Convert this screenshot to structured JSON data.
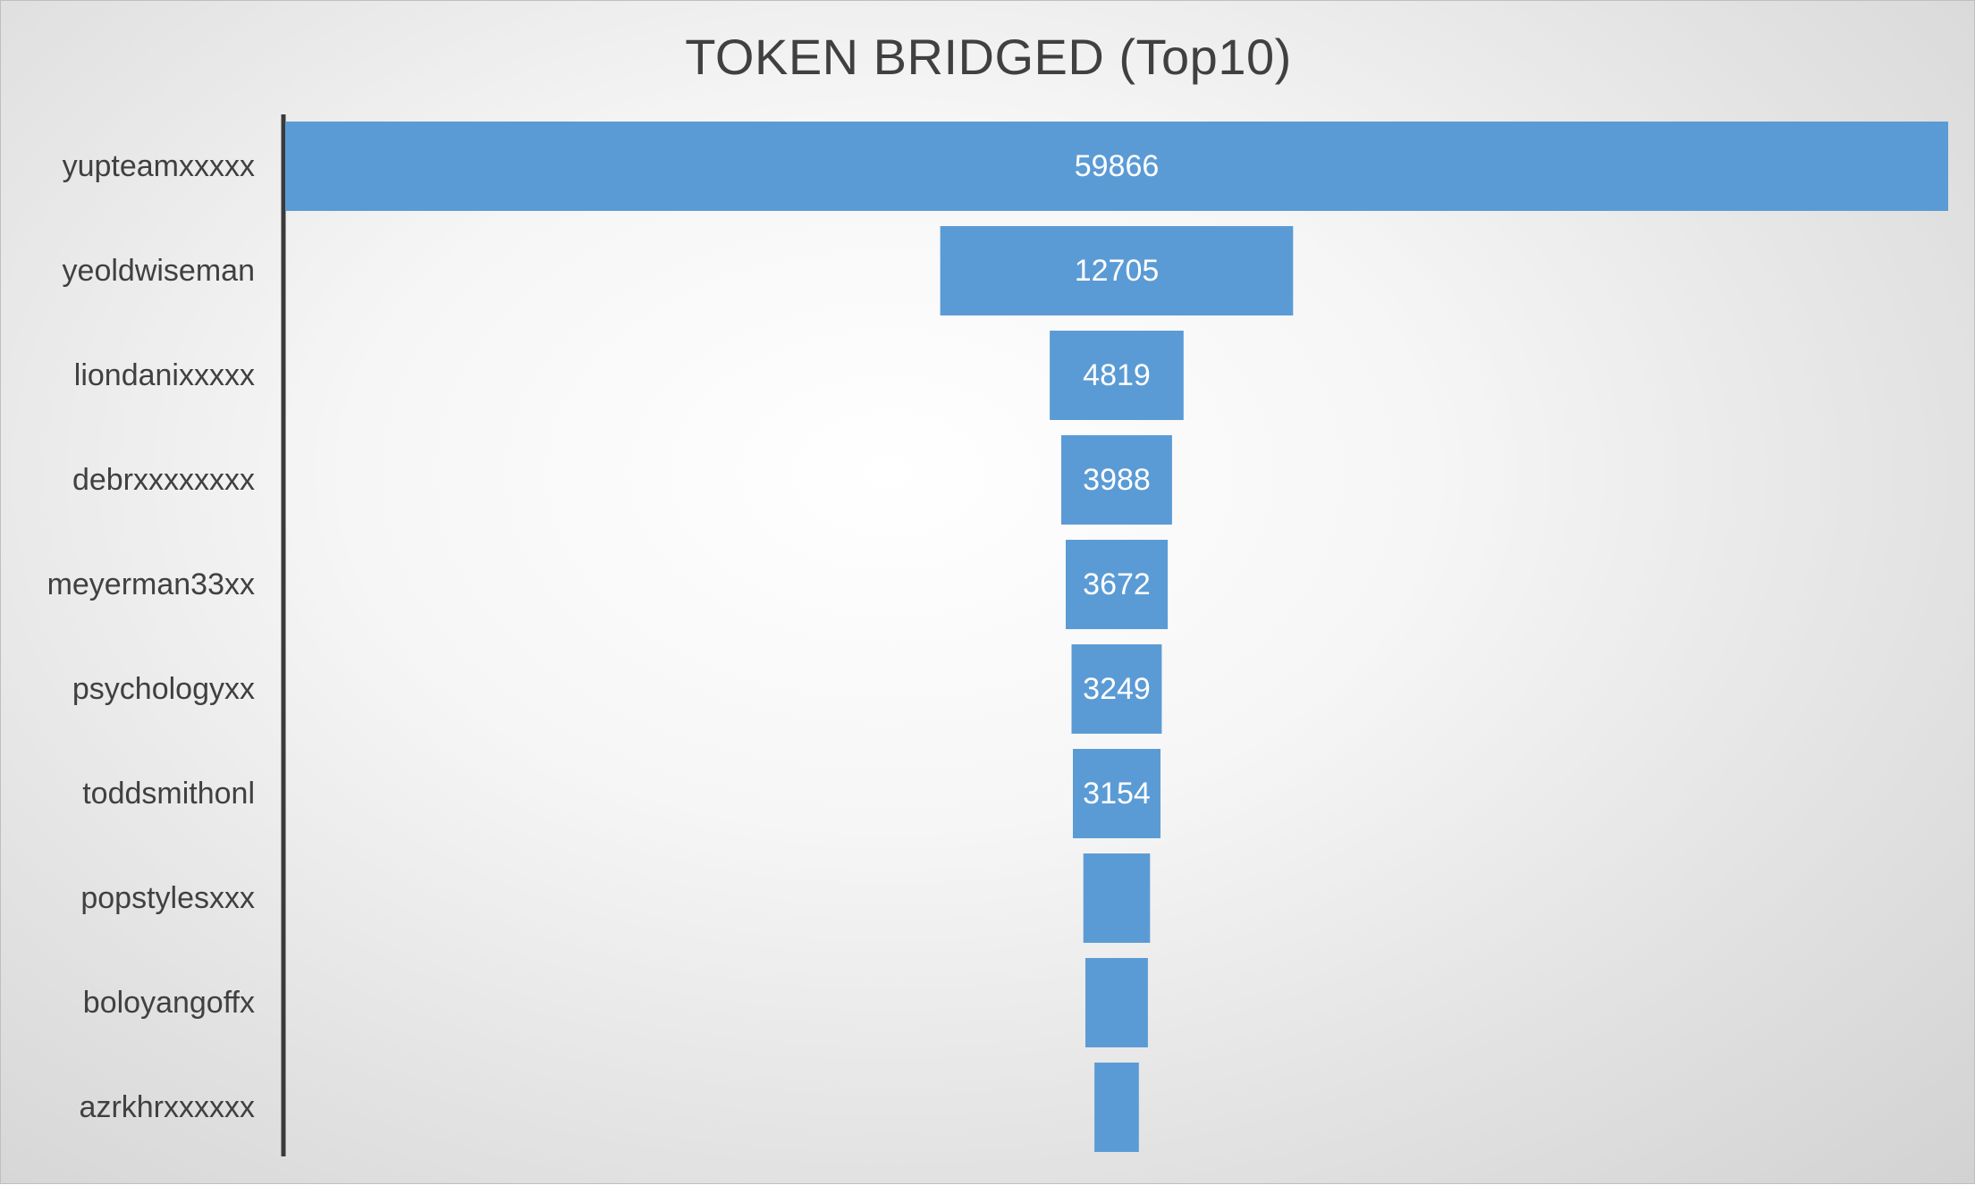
{
  "chart_data": {
    "type": "bar",
    "orientation": "horizontal",
    "style": "funnel",
    "title": "TOKEN BRIDGED (Top10)",
    "xlabel": "",
    "ylabel": "",
    "categories": [
      "yupteamxxxxx",
      "yeoldwiseman",
      "liondanixxxxx",
      "debrxxxxxxxx",
      "meyerman33xx",
      "psychologyxx",
      "toddsmithonl",
      "popstylesxxx",
      "boloyangoffx",
      "azrkhrxxxxxx"
    ],
    "values": [
      59866,
      12705,
      4819,
      3988,
      3672,
      3249,
      3154,
      2400,
      2250,
      1600
    ],
    "data_labels": [
      "59866",
      "12705",
      "4819",
      "3988",
      "3672",
      "3249",
      "3154",
      "",
      "",
      ""
    ],
    "bar_color": "#5b9bd5",
    "grid": false,
    "legend": "none"
  }
}
